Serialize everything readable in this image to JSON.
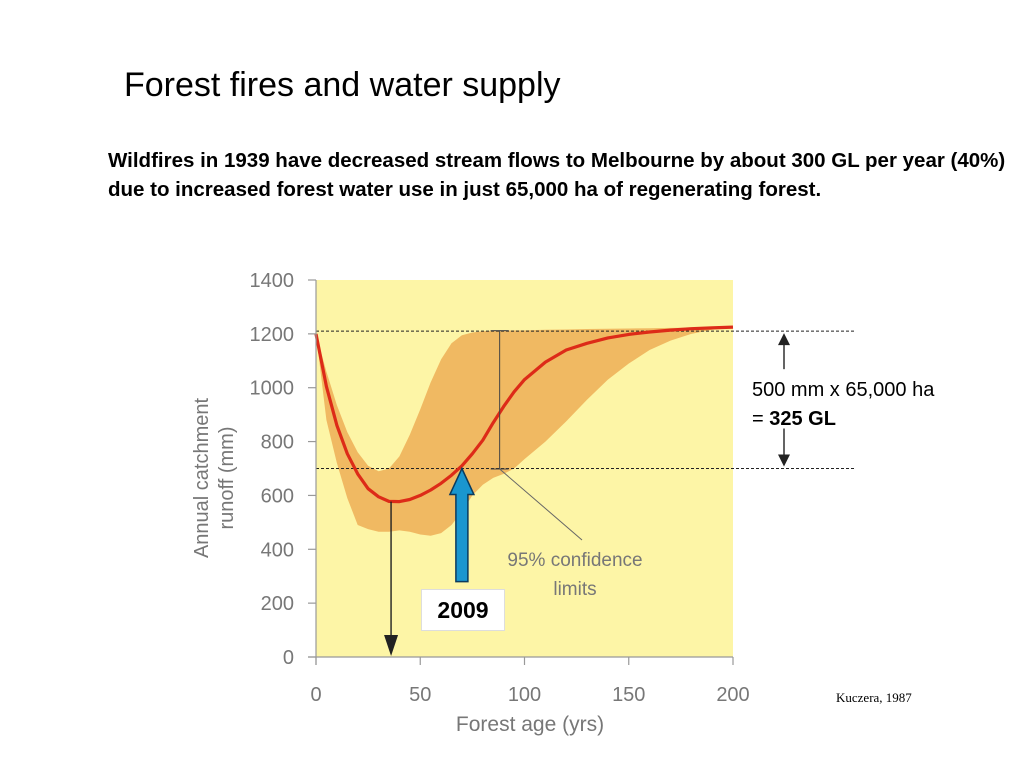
{
  "slide": {
    "title": "Forest fires and water supply",
    "lead": "Wildfires in 1939 have decreased stream flows to Melbourne by about 300 GL per year (40%) due to increased forest water use in just 65,000 ha of regenerating forest.",
    "annotation_line1": "500 mm x 65,000 ha",
    "annotation_eq": "= ",
    "annotation_result": "325 GL",
    "year_marker": "2009",
    "citation": "Kuczera, 1987"
  },
  "colors": {
    "plot_background": "#fdf5a6",
    "confidence_band": "#f0b962",
    "curve": "#dd2b18",
    "axis_text": "#777777",
    "arrow_fill": "#1a96cf",
    "arrow_stroke": "#0a3b5e"
  },
  "chart_data": {
    "type": "line",
    "title": "",
    "xlabel": "Forest age (yrs)",
    "ylabel_line1": "Annual catchment",
    "ylabel_line2": "runoff (mm)",
    "xlim": [
      0,
      200
    ],
    "ylim": [
      0,
      1400
    ],
    "x_ticks": [
      0,
      50,
      100,
      150,
      200
    ],
    "y_ticks": [
      0,
      200,
      400,
      600,
      800,
      1000,
      1200,
      1400
    ],
    "grid": false,
    "legend": "none",
    "band_label_line1": "95% confidence",
    "band_label_line2": "limits",
    "series": [
      {
        "x": [
          0,
          5,
          10,
          15,
          20,
          25,
          30,
          35,
          40,
          45,
          50,
          55,
          60,
          65,
          70,
          75,
          80,
          85,
          90,
          95,
          100,
          110,
          120,
          130,
          140,
          150,
          160,
          170,
          180,
          190,
          200
        ],
        "y": [
          1200,
          1005,
          860,
          755,
          680,
          625,
          595,
          578,
          577,
          585,
          600,
          620,
          645,
          675,
          710,
          755,
          805,
          870,
          930,
          985,
          1030,
          1095,
          1140,
          1165,
          1185,
          1198,
          1207,
          1214,
          1219,
          1222,
          1225
        ]
      }
    ],
    "band": {
      "x": [
        0,
        5,
        10,
        15,
        20,
        25,
        30,
        35,
        40,
        45,
        50,
        55,
        60,
        65,
        70,
        75,
        80,
        85,
        90,
        95,
        100,
        110,
        120,
        130,
        140,
        150,
        160,
        170,
        180,
        190,
        200
      ],
      "upper": [
        1200,
        1060,
        935,
        835,
        760,
        710,
        690,
        700,
        745,
        825,
        920,
        1020,
        1105,
        1165,
        1195,
        1205,
        1210,
        1212,
        1212,
        1213,
        1213,
        1215,
        1216,
        1218,
        1219,
        1220,
        1221,
        1222,
        1223,
        1224,
        1225
      ],
      "lower": [
        1200,
        880,
        720,
        590,
        490,
        475,
        465,
        465,
        470,
        465,
        455,
        450,
        460,
        490,
        540,
        600,
        640,
        665,
        680,
        700,
        735,
        800,
        875,
        955,
        1030,
        1090,
        1140,
        1175,
        1200,
        1215,
        1225
      ]
    },
    "reference_lines": [
      {
        "y": 1210,
        "style": "dashed"
      },
      {
        "y": 700,
        "style": "dashed"
      }
    ],
    "confidence_marker": {
      "x": 90,
      "y_top": 1212,
      "y_bottom": 698
    },
    "minimum_marker": {
      "x": 36,
      "y": 577
    },
    "year_2009_marker": {
      "x": 70,
      "y": 700,
      "arrow_base_y": 280
    }
  }
}
